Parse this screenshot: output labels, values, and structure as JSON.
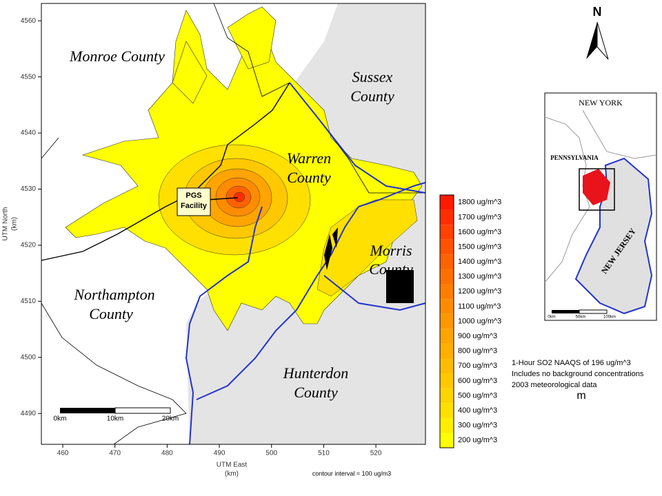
{
  "map": {
    "axes": {
      "x_title": "UTM East",
      "x_unit": "(km)",
      "y_title": "UTM North",
      "y_unit": "(km)",
      "xlim": [
        455.9,
        529.5
      ],
      "ylim": [
        4484.5,
        4563.1
      ],
      "xticks": [
        460,
        470,
        480,
        490,
        500,
        510,
        520
      ],
      "yticks": [
        4490,
        4500,
        4510,
        4520,
        4530,
        4540,
        4550,
        4560
      ]
    },
    "labels": {
      "monroe": "Monroe County",
      "sussex_1": "Sussex",
      "sussex_2": "County",
      "warren_1": "Warren",
      "warren_2": "County",
      "morris_1": "Morris",
      "morris_2": "County",
      "northampton_1": "Northampton",
      "northampton_2": "County",
      "hunterdon_1": "Hunterdon",
      "hunterdon_2": "County",
      "facility_1": "PGS",
      "facility_2": "Facility"
    },
    "scale_bar": [
      "0km",
      "10km",
      "20km"
    ],
    "north": "N",
    "contour_note": "contour interval = 100 ug/m3",
    "legend": [
      {
        "label": "1800 ug/m^3",
        "color": "#ff1a00"
      },
      {
        "label": "1700 ug/m^3",
        "color": "#ff2e00"
      },
      {
        "label": "1600 ug/m^3",
        "color": "#ff4200"
      },
      {
        "label": "1500 ug/m^3",
        "color": "#ff5200"
      },
      {
        "label": "1400 ug/m^3",
        "color": "#ff6200"
      },
      {
        "label": "1300 ug/m^3",
        "color": "#ff7000"
      },
      {
        "label": "1200 ug/m^3",
        "color": "#ff7e00"
      },
      {
        "label": "1100 ug/m^3",
        "color": "#ff8c00"
      },
      {
        "label": "1000 ug/m^3",
        "color": "#ff9800"
      },
      {
        "label": "900 ug/m^3",
        "color": "#ffa400"
      },
      {
        "label": "800 ug/m^3",
        "color": "#ffb000"
      },
      {
        "label": "700 ug/m^3",
        "color": "#ffbc00"
      },
      {
        "label": "600 ug/m^3",
        "color": "#ffc800"
      },
      {
        "label": "500 ug/m^3",
        "color": "#ffd400"
      },
      {
        "label": "400 ug/m^3",
        "color": "#ffe000"
      },
      {
        "label": "300 ug/m^3",
        "color": "#ffee00"
      },
      {
        "label": "200 ug/m^3",
        "color": "#ffff00"
      }
    ],
    "inset": {
      "new_york": "NEW YORK",
      "pennsylvania": "PENNSYLVANIA",
      "new_jersey": "NEW JERSEY",
      "scale": [
        "0km",
        "50km",
        "100km"
      ]
    },
    "notes": [
      "1-Hour SO2 NAAQS of 196 ug/m^3",
      "Includes no background concentrations",
      "2003 meteorological data"
    ],
    "stray": "m"
  }
}
